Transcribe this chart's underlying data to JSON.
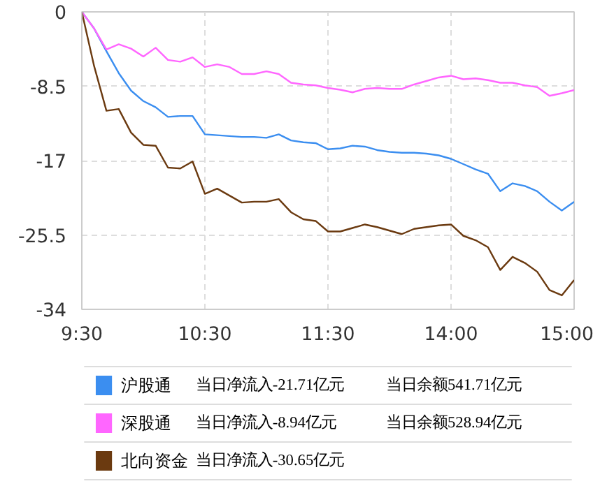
{
  "chart_data": {
    "type": "line",
    "categories": [
      "9:30",
      null,
      null,
      null,
      null,
      null,
      null,
      null,
      null,
      null,
      "10:30",
      null,
      null,
      null,
      null,
      null,
      null,
      null,
      null,
      null,
      "11:30",
      null,
      null,
      null,
      null,
      null,
      null,
      null,
      null,
      null,
      "14:00",
      null,
      null,
      null,
      null,
      null,
      null,
      null,
      null,
      null,
      "15:00"
    ],
    "ylim": [
      -34,
      0
    ],
    "yticks": [
      0,
      -8.5,
      -17,
      -25.5,
      -34
    ],
    "grid": true,
    "legend": "bottom",
    "series": [
      {
        "name": "沪股通",
        "color": "#3b8ef0",
        "values": [
          0,
          -1.9,
          -4.5,
          -7.0,
          -9.0,
          -10.2,
          -10.9,
          -12.0,
          -11.9,
          -11.9,
          -14.0,
          -14.1,
          -14.2,
          -14.3,
          -14.3,
          -14.4,
          -14.0,
          -14.7,
          -14.9,
          -15.0,
          -15.7,
          -15.6,
          -15.3,
          -15.4,
          -15.8,
          -16.0,
          -16.1,
          -16.1,
          -16.2,
          -16.4,
          -16.8,
          -17.4,
          -18.0,
          -18.5,
          -20.5,
          -19.6,
          -19.9,
          -20.5,
          -21.7,
          -22.7,
          -21.71
        ]
      },
      {
        "name": "深股通",
        "color": "#ff66ff",
        "values": [
          0,
          -1.9,
          -4.3,
          -3.7,
          -4.2,
          -5.1,
          -4.1,
          -5.5,
          -5.7,
          -5.2,
          -6.3,
          -6.0,
          -6.3,
          -7.1,
          -7.1,
          -6.8,
          -7.1,
          -8.1,
          -8.3,
          -8.4,
          -8.7,
          -8.9,
          -9.2,
          -8.8,
          -8.7,
          -8.8,
          -8.8,
          -8.3,
          -7.9,
          -7.5,
          -7.3,
          -7.7,
          -7.6,
          -7.8,
          -8.1,
          -8.1,
          -8.4,
          -8.6,
          -9.6,
          -9.3,
          -8.94
        ]
      },
      {
        "name": "北向资金",
        "color": "#6b3a10",
        "values": [
          0,
          -6.2,
          -11.3,
          -11.1,
          -13.8,
          -15.2,
          -15.3,
          -17.8,
          -17.9,
          -17.1,
          -20.8,
          -20.2,
          -21.0,
          -21.8,
          -21.7,
          -21.7,
          -21.4,
          -22.9,
          -23.7,
          -23.9,
          -25.1,
          -25.1,
          -24.7,
          -24.3,
          -24.6,
          -25.0,
          -25.4,
          -24.8,
          -24.6,
          -24.4,
          -24.3,
          -25.6,
          -26.1,
          -26.9,
          -29.5,
          -28.0,
          -28.7,
          -29.7,
          -31.8,
          -32.4,
          -30.65
        ]
      }
    ],
    "annotations": [
      "当日净流入-21.71亿元",
      "当日余额541.71亿元",
      "当日净流入-8.94亿元",
      "当日余额528.94亿元",
      "当日净流入-30.65亿元"
    ]
  }
}
